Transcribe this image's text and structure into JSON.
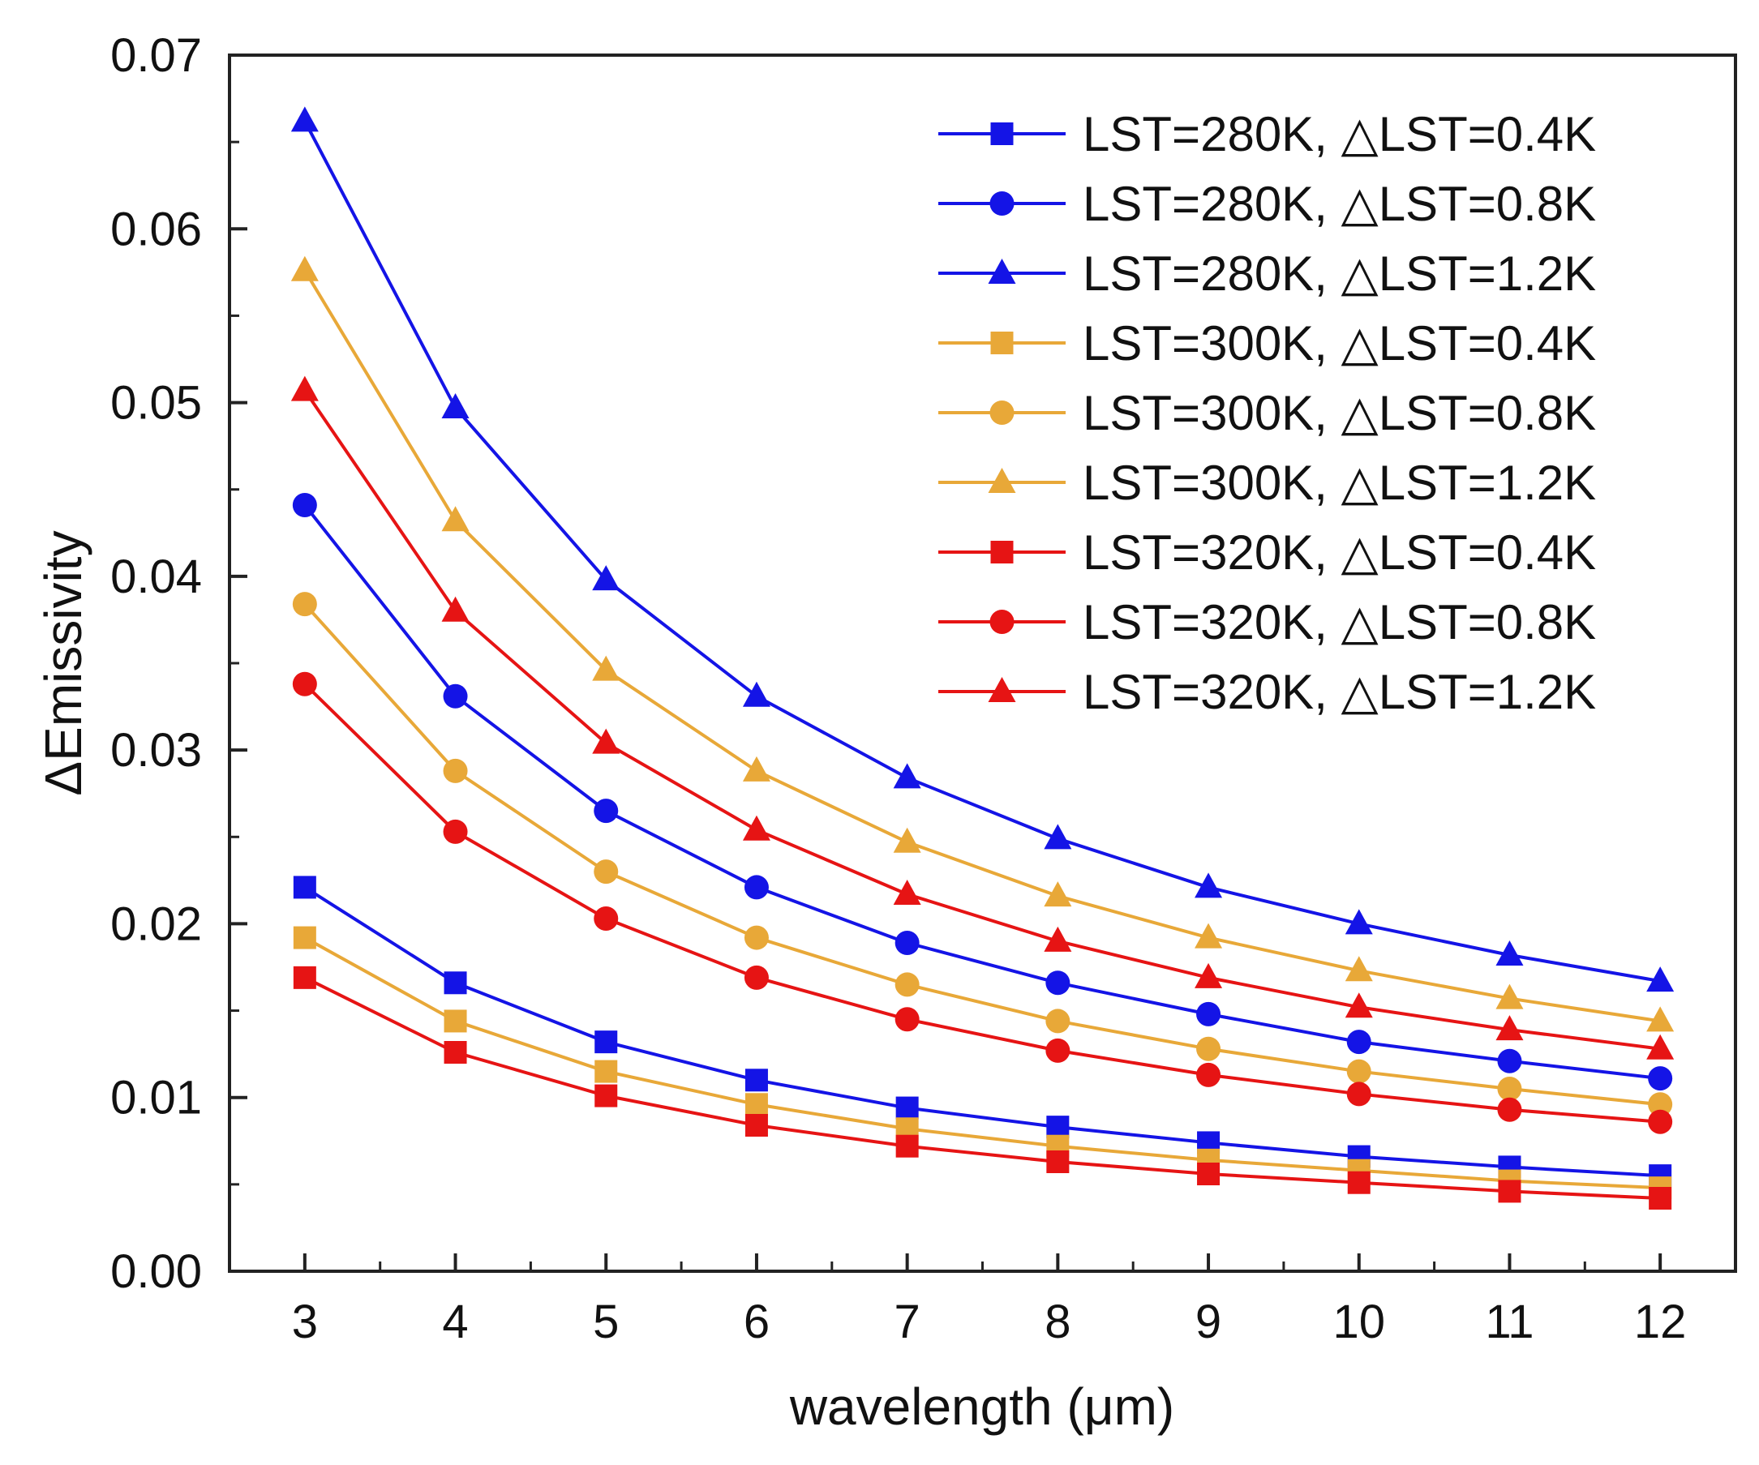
{
  "chart_data": {
    "type": "line",
    "xlabel": "wavelength (μm)",
    "ylabel": "ΔEmissivity",
    "xlim": [
      2.5,
      12.5
    ],
    "ylim": [
      0.0,
      0.07
    ],
    "x": [
      3,
      4,
      5,
      6,
      7,
      8,
      9,
      10,
      11,
      12
    ],
    "x_ticks": [
      "3",
      "4",
      "5",
      "6",
      "7",
      "8",
      "9",
      "10",
      "11",
      "12"
    ],
    "y_ticks": [
      "0.00",
      "0.01",
      "0.02",
      "0.03",
      "0.04",
      "0.05",
      "0.06",
      "0.07"
    ],
    "legend_position": "top-right",
    "series": [
      {
        "name": "LST=280K, △LST=0.4K",
        "color": "#1414e6",
        "marker": "square",
        "values": [
          0.0221,
          0.0166,
          0.0132,
          0.011,
          0.0094,
          0.0083,
          0.0074,
          0.0066,
          0.006,
          0.0055
        ]
      },
      {
        "name": "LST=280K, △LST=0.8K",
        "color": "#1414e6",
        "marker": "circle",
        "values": [
          0.0441,
          0.0331,
          0.0265,
          0.0221,
          0.0189,
          0.0166,
          0.0148,
          0.0132,
          0.0121,
          0.0111
        ]
      },
      {
        "name": "LST=280K, △LST=1.2K",
        "color": "#1414e6",
        "marker": "triangle",
        "values": [
          0.0662,
          0.0497,
          0.0398,
          0.0331,
          0.0284,
          0.0249,
          0.0221,
          0.02,
          0.0182,
          0.0167
        ]
      },
      {
        "name": "LST=300K, △LST=0.4K",
        "color": "#e8a838",
        "marker": "square",
        "values": [
          0.0192,
          0.0144,
          0.0115,
          0.0096,
          0.0082,
          0.0072,
          0.0064,
          0.0058,
          0.0052,
          0.0048
        ]
      },
      {
        "name": "LST=300K, △LST=0.8K",
        "color": "#e8a838",
        "marker": "circle",
        "values": [
          0.0384,
          0.0288,
          0.023,
          0.0192,
          0.0165,
          0.0144,
          0.0128,
          0.0115,
          0.0105,
          0.0096
        ]
      },
      {
        "name": "LST=300K, △LST=1.2K",
        "color": "#e8a838",
        "marker": "triangle",
        "values": [
          0.0576,
          0.0432,
          0.0346,
          0.0288,
          0.0247,
          0.0216,
          0.0192,
          0.0173,
          0.0157,
          0.0144
        ]
      },
      {
        "name": "LST=320K, △LST=0.4K",
        "color": "#e61414",
        "marker": "square",
        "values": [
          0.0169,
          0.0126,
          0.0101,
          0.0084,
          0.0072,
          0.0063,
          0.0056,
          0.0051,
          0.0046,
          0.0042
        ]
      },
      {
        "name": "LST=320K, △LST=0.8K",
        "color": "#e61414",
        "marker": "circle",
        "values": [
          0.0338,
          0.0253,
          0.0203,
          0.0169,
          0.0145,
          0.0127,
          0.0113,
          0.0102,
          0.0093,
          0.0086
        ]
      },
      {
        "name": "LST=320K, △LST=1.2K",
        "color": "#e61414",
        "marker": "triangle",
        "values": [
          0.0507,
          0.038,
          0.0304,
          0.0254,
          0.0217,
          0.019,
          0.0169,
          0.0152,
          0.0139,
          0.0128
        ]
      }
    ]
  }
}
